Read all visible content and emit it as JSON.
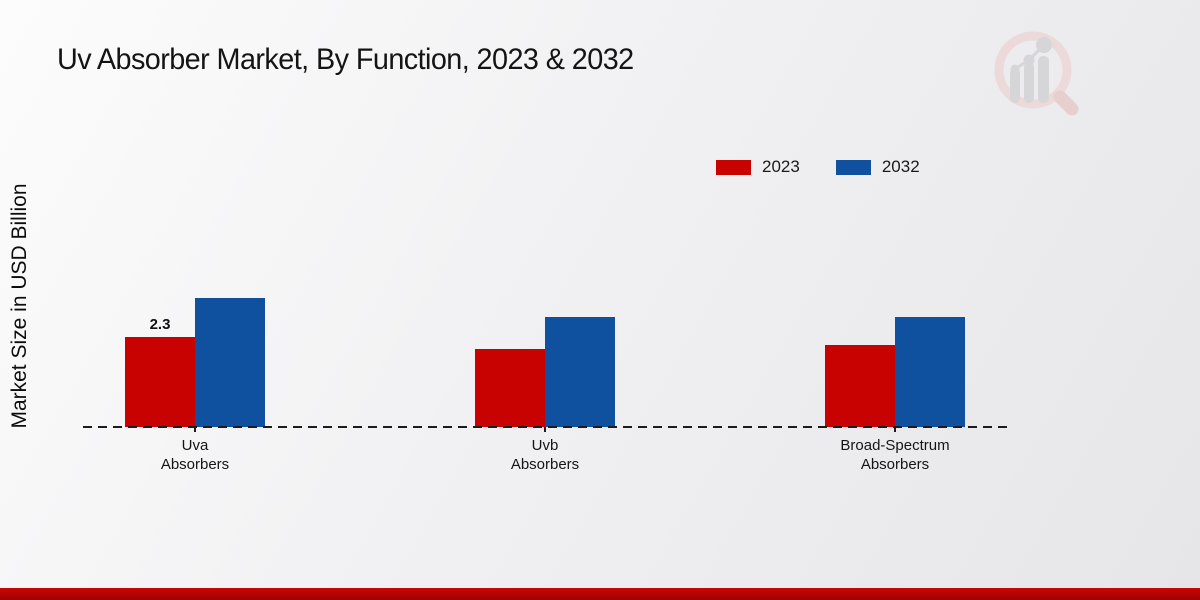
{
  "page": {
    "title": "Uv Absorber Market, By Function, 2023 & 2032",
    "ylabel": "Market Size in USD Billion"
  },
  "legend": {
    "items": [
      {
        "label": "2023",
        "color": "#c80101"
      },
      {
        "label": "2032",
        "color": "#10519f"
      }
    ]
  },
  "chart_data": {
    "type": "bar",
    "title": "Uv Absorber Market, By Function, 2023 & 2032",
    "xlabel": "",
    "ylabel": "Market Size in USD Billion",
    "categories": [
      "Uva Absorbers",
      "Uvb Absorbers",
      "Broad-Spectrum Absorbers"
    ],
    "category_label_lines": [
      [
        "Uva",
        "Absorbers"
      ],
      [
        "Uvb",
        "Absorbers"
      ],
      [
        "Broad-Spectrum",
        "Absorbers"
      ]
    ],
    "series": [
      {
        "name": "2023",
        "color": "#c80101",
        "values": [
          2.3,
          2.0,
          2.1
        ],
        "value_labels": [
          "2.3",
          "",
          ""
        ]
      },
      {
        "name": "2032",
        "color": "#10519f",
        "values": [
          3.3,
          2.8,
          2.8
        ],
        "value_labels": [
          "",
          "",
          ""
        ]
      }
    ],
    "ylim": [
      0,
      3.5
    ],
    "grid": false,
    "legend_position": "top-right",
    "baseline_style": "dashed"
  },
  "footer": {
    "stripe_color": "#c40404"
  },
  "watermark": {
    "name": "market-research-future-logo"
  }
}
